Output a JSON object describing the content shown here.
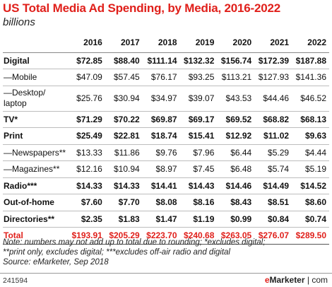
{
  "title": "US Total Media Ad Spending, by Media, 2016-2022",
  "subtitle": "billions",
  "note_lines": [
    "Note: numbers may not add up to total due to rounding; *excludes digital;",
    "**print only, excludes digital; ***excludes off-air radio and digital",
    "Source: eMarketer, Sep 2018"
  ],
  "footer_id": "241594",
  "logo": {
    "prefix": "e",
    "name": "Marketer",
    "suffix": "com"
  },
  "chart_data": {
    "type": "table",
    "title": "US Total Media Ad Spending, by Media, 2016-2022",
    "subtitle": "billions",
    "columns": [
      "2016",
      "2017",
      "2018",
      "2019",
      "2020",
      "2021",
      "2022"
    ],
    "rows": [
      {
        "label": "Digital",
        "values": [
          "$72.85",
          "$88.40",
          "$111.14",
          "$132.32",
          "$156.74",
          "$172.39",
          "$187.88"
        ],
        "style": "bold"
      },
      {
        "label": "—Mobile",
        "values": [
          "$47.09",
          "$57.45",
          "$76.17",
          "$93.25",
          "$113.21",
          "$127.93",
          "$141.36"
        ],
        "style": "sub"
      },
      {
        "label": "—Desktop/ laptop",
        "values": [
          "$25.76",
          "$30.94",
          "$34.97",
          "$39.07",
          "$43.53",
          "$44.46",
          "$46.52"
        ],
        "style": "sub-tall"
      },
      {
        "label": "TV*",
        "values": [
          "$71.29",
          "$70.22",
          "$69.87",
          "$69.17",
          "$69.52",
          "$68.82",
          "$68.13"
        ],
        "style": "bold-section"
      },
      {
        "label": "Print",
        "values": [
          "$25.49",
          "$22.81",
          "$18.74",
          "$15.41",
          "$12.92",
          "$11.02",
          "$9.63"
        ],
        "style": "bold"
      },
      {
        "label": "—Newspapers**",
        "values": [
          "$13.33",
          "$11.86",
          "$9.76",
          "$7.96",
          "$6.44",
          "$5.29",
          "$4.44"
        ],
        "style": "sub"
      },
      {
        "label": "—Magazines**",
        "values": [
          "$12.16",
          "$10.94",
          "$8.97",
          "$7.45",
          "$6.48",
          "$5.74",
          "$5.19"
        ],
        "style": "sub"
      },
      {
        "label": "Radio***",
        "values": [
          "$14.33",
          "$14.33",
          "$14.41",
          "$14.43",
          "$14.46",
          "$14.49",
          "$14.52"
        ],
        "style": "bold-section"
      },
      {
        "label": "Out-of-home",
        "values": [
          "$7.60",
          "$7.70",
          "$8.08",
          "$8.16",
          "$8.43",
          "$8.51",
          "$8.60"
        ],
        "style": "bold"
      },
      {
        "label": "Directories**",
        "values": [
          "$2.35",
          "$1.83",
          "$1.47",
          "$1.19",
          "$0.99",
          "$0.84",
          "$0.74"
        ],
        "style": "bold"
      },
      {
        "label": "Total",
        "values": [
          "$193.91",
          "$205.29",
          "$223.70",
          "$240.68",
          "$263.05",
          "$276.07",
          "$289.50"
        ],
        "style": "total"
      }
    ]
  }
}
